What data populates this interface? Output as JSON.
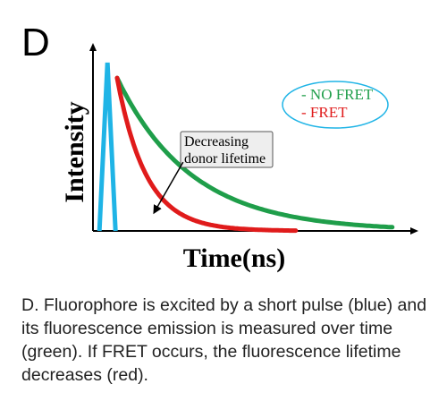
{
  "panel_label": "D",
  "caption": "D. Fluorophore is excited by a short pulse (blue) and its fluorescence emission is measured over time (green). If FRET occurs, the fluorescence lifetime decreases (red).",
  "colors": {
    "pulse": "#1fb4e6",
    "no_fret": "#1f9e4a",
    "fret": "#e01b1b",
    "legend_border": "#1fb4e6",
    "annotation_box": "#eeeeee"
  },
  "chart_data": {
    "type": "line",
    "title": "",
    "xlabel": "Time(ns)",
    "ylabel": "Intensity",
    "xlim": [
      0,
      10
    ],
    "ylim": [
      0,
      1.1
    ],
    "ticks": false,
    "grid": false,
    "legend": {
      "placement": "top-right",
      "entries": [
        "- NO FRET",
        "- FRET"
      ]
    },
    "annotation": {
      "text_lines": [
        "Decreasing",
        "donor lifetime"
      ],
      "arrow_from": [
        2.8,
        0.45
      ],
      "arrow_to": [
        1.9,
        0.12
      ]
    },
    "series": [
      {
        "name": "- NO FRET",
        "color_key": "no_fret",
        "tau": 2.3,
        "x_start": 0.75,
        "x_end": 9.3,
        "y_start": 1.0
      },
      {
        "name": "- FRET",
        "color_key": "fret",
        "tau": 0.9,
        "x_start": 0.75,
        "x_end": 6.3,
        "y_start": 1.0
      }
    ],
    "pulse": {
      "color_key": "pulse",
      "x": [
        0.2,
        0.45,
        0.7
      ],
      "y": [
        0.0,
        1.1,
        0.0
      ]
    }
  }
}
